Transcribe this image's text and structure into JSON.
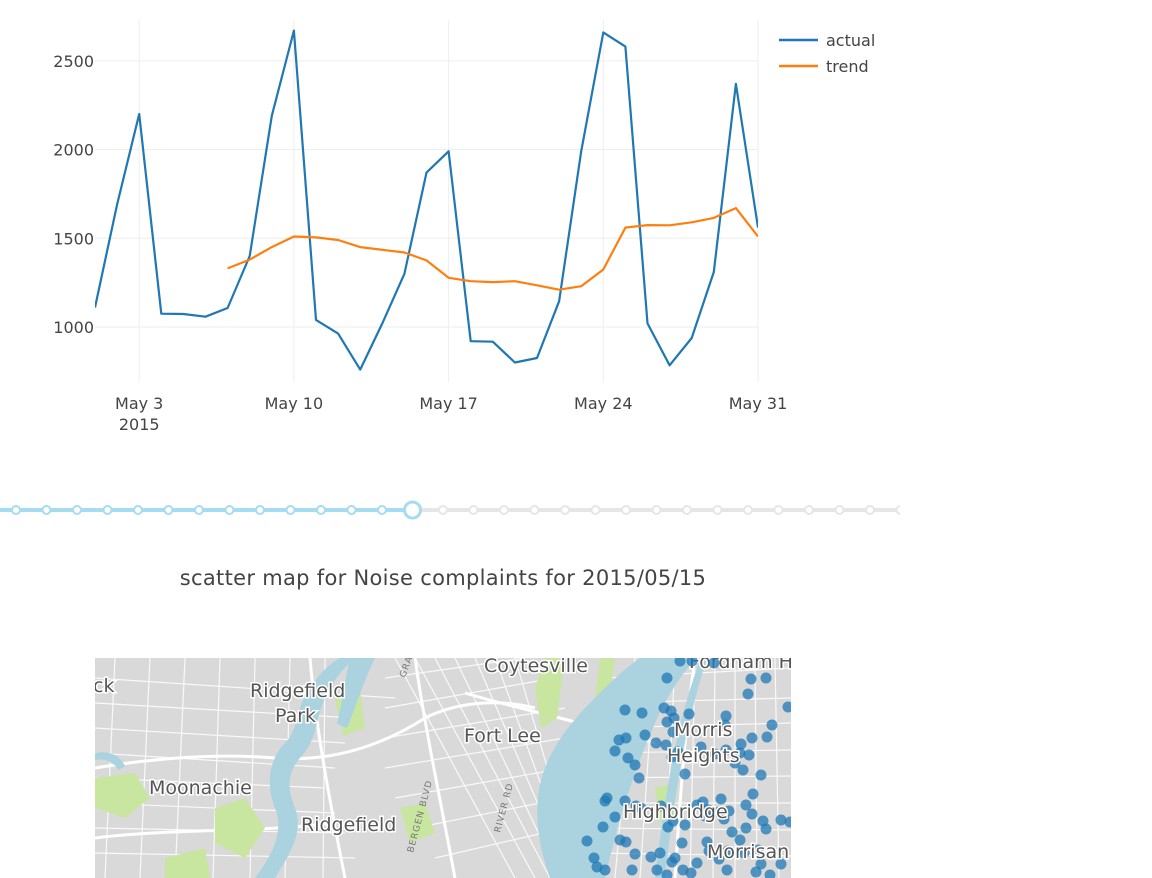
{
  "chart_data": {
    "type": "line",
    "title": "",
    "xlabel": "",
    "ylabel": "",
    "xlim": [
      "2015-05-01",
      "2015-05-31"
    ],
    "ylim": [
      690,
      2730
    ],
    "x_ticks": [
      "May 3",
      "May 10",
      "May 17",
      "May 24",
      "May 31"
    ],
    "x_tick_sublabel": "2015",
    "y_ticks": [
      "1000",
      "1500",
      "2000",
      "2500"
    ],
    "grid": true,
    "legend_position": "top-right",
    "series": [
      {
        "name": "actual",
        "color": "#1f77b4",
        "x": [
          "2015-05-01",
          "2015-05-02",
          "2015-05-03",
          "2015-05-04",
          "2015-05-05",
          "2015-05-06",
          "2015-05-07",
          "2015-05-08",
          "2015-05-09",
          "2015-05-10",
          "2015-05-11",
          "2015-05-12",
          "2015-05-13",
          "2015-05-14",
          "2015-05-15",
          "2015-05-16",
          "2015-05-17",
          "2015-05-18",
          "2015-05-19",
          "2015-05-20",
          "2015-05-21",
          "2015-05-22",
          "2015-05-23",
          "2015-05-24",
          "2015-05-25",
          "2015-05-26",
          "2015-05-27",
          "2015-05-28",
          "2015-05-29",
          "2015-05-30",
          "2015-05-31"
        ],
        "values": [
          1110,
          1690,
          2200,
          1075,
          1073,
          1058,
          1107,
          1400,
          2190,
          2670,
          1040,
          963,
          760,
          1020,
          1300,
          1870,
          1990,
          920,
          917,
          800,
          825,
          1145,
          1990,
          2660,
          2580,
          1020,
          784,
          938,
          1310,
          2370,
          1560
        ]
      },
      {
        "name": "trend",
        "color": "#ff7f0e",
        "x": [
          "2015-05-07",
          "2015-05-08",
          "2015-05-09",
          "2015-05-10",
          "2015-05-11",
          "2015-05-12",
          "2015-05-13",
          "2015-05-14",
          "2015-05-15",
          "2015-05-16",
          "2015-05-17",
          "2015-05-18",
          "2015-05-19",
          "2015-05-20",
          "2015-05-21",
          "2015-05-22",
          "2015-05-23",
          "2015-05-24",
          "2015-05-25",
          "2015-05-26",
          "2015-05-27",
          "2015-05-28",
          "2015-05-29",
          "2015-05-30",
          "2015-05-31"
        ],
        "values": [
          1330,
          1380,
          1450,
          1510,
          1505,
          1490,
          1450,
          1435,
          1420,
          1375,
          1277,
          1258,
          1253,
          1258,
          1235,
          1210,
          1230,
          1324,
          1560,
          1574,
          1573,
          1590,
          1615,
          1670,
          1510
        ]
      }
    ]
  },
  "slider": {
    "step_count": 30,
    "active_index": 13,
    "active_color": "#a5dcf2",
    "inactive_color": "#e6e6e6"
  },
  "map": {
    "title": "scatter map for Noise complaints for 2015/05/15",
    "water_color": "#aad3df",
    "park_color": "#c8e6a0",
    "land_color": "#d9d9d9",
    "marker_color": "#1f77b4",
    "place_labels": [
      "Coytesville",
      "Fordham H",
      "Ridgefield",
      "Park",
      "Fort Lee",
      "Morris",
      "Heights",
      "Moonachie",
      "Highbridge",
      "Ridgefield",
      "Morrisan",
      "ck"
    ],
    "road_labels": [
      "GRA",
      "BERGEN BLVD",
      "RIVER RD"
    ]
  }
}
